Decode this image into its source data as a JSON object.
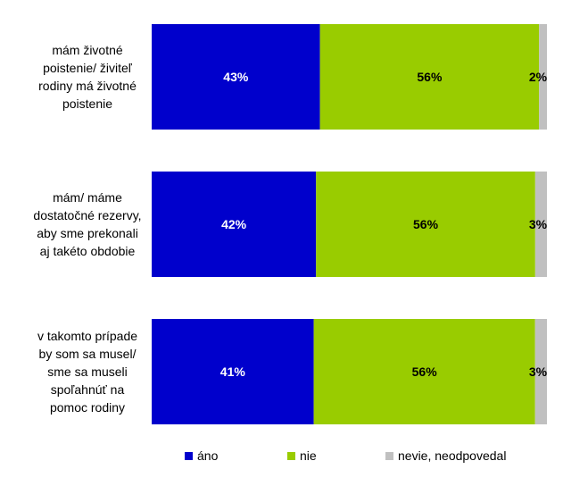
{
  "chart_data": {
    "type": "bar",
    "orientation": "horizontal",
    "stacked": "percent",
    "categories": [
      [
        "mám životné",
        "poistenie/ živiteľ",
        "rodiny má životné",
        "poistenie"
      ],
      [
        "mám/ máme",
        "dostatočné rezervy,",
        "aby sme prekonali",
        "aj takéto obdobie"
      ],
      [
        "v takomto prípade",
        "by som sa musel/",
        "sme sa museli",
        "spoľahnúť na",
        "pomoc rodiny"
      ]
    ],
    "series": [
      {
        "name": "áno",
        "color": "#0000cc",
        "label_color": "#ffffff",
        "values": [
          43,
          42,
          41
        ],
        "labels": [
          "43%",
          "42%",
          "41%"
        ]
      },
      {
        "name": "nie",
        "color": "#99cc00",
        "label_color": "#000000",
        "values": [
          56,
          56,
          56
        ],
        "labels": [
          "56%",
          "56%",
          "56%"
        ]
      },
      {
        "name": "nevie, neodpovedal",
        "color": "#c0c0c0",
        "label_color": "#000000",
        "values": [
          2,
          3,
          3
        ],
        "labels": [
          "2%",
          "3%",
          "3%"
        ]
      }
    ],
    "xlim": [
      0,
      100
    ],
    "grid": false,
    "legend_position": "bottom"
  }
}
